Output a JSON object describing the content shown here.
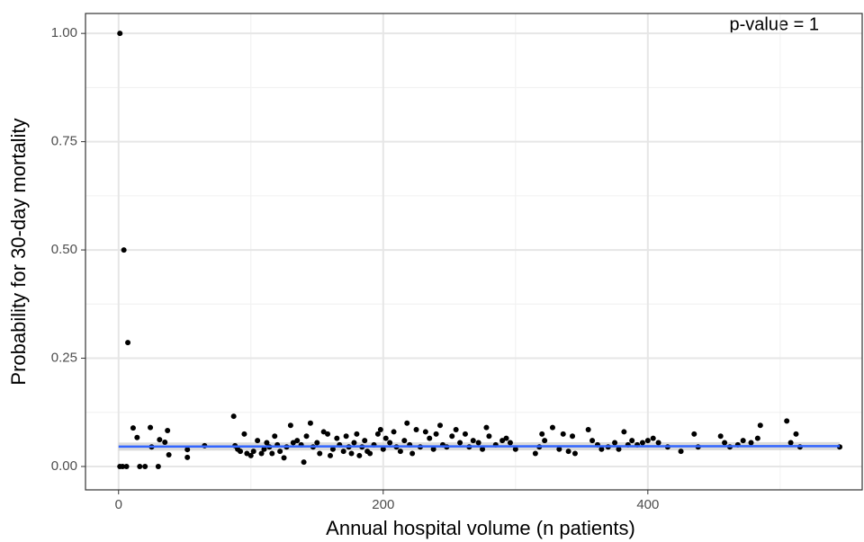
{
  "chart_data": {
    "type": "scatter",
    "annotation": "p-value = 1",
    "x_label": "Annual hospital volume (n patients)",
    "y_label": "Probability for 30-day mortality",
    "xlim": [
      -25,
      562
    ],
    "ylim": [
      -0.054,
      1.046
    ],
    "xticks": [
      0,
      200,
      400
    ],
    "yticks": [
      {
        "value": 0,
        "label": "0.00"
      },
      {
        "value": 0.25,
        "label": "0.25"
      },
      {
        "value": 0.5,
        "label": "0.50"
      },
      {
        "value": 0.75,
        "label": "0.75"
      },
      {
        "value": 1,
        "label": "1.00"
      }
    ],
    "x_minor_grid": [
      100,
      300,
      500
    ],
    "y_minor_grid": [
      0.125,
      0.375,
      0.625,
      0.875
    ],
    "grid": true,
    "color": "#000000",
    "trend": {
      "color": "#3366ff",
      "x": [
        0,
        545
      ],
      "values": [
        0.046,
        0.047
      ]
    },
    "x": [
      1,
      4,
      7,
      1,
      3,
      6,
      11,
      14,
      16,
      20,
      24,
      25,
      30,
      31,
      35,
      37,
      38,
      52,
      52,
      65,
      87,
      88,
      90,
      92,
      95,
      97,
      100,
      102,
      105,
      108,
      110,
      112,
      114,
      116,
      118,
      120,
      122,
      125,
      127,
      130,
      132,
      135,
      138,
      140,
      142,
      145,
      147,
      150,
      152,
      155,
      158,
      160,
      162,
      165,
      167,
      170,
      172,
      174,
      176,
      178,
      180,
      182,
      184,
      186,
      188,
      190,
      193,
      196,
      198,
      200,
      202,
      205,
      208,
      210,
      213,
      216,
      218,
      220,
      222,
      225,
      228,
      232,
      235,
      238,
      240,
      243,
      245,
      248,
      252,
      255,
      258,
      262,
      265,
      268,
      272,
      275,
      278,
      280,
      285,
      290,
      293,
      296,
      300,
      315,
      318,
      320,
      322,
      328,
      333,
      336,
      340,
      343,
      345,
      355,
      358,
      362,
      365,
      370,
      375,
      378,
      382,
      385,
      388,
      392,
      396,
      400,
      404,
      408,
      415,
      425,
      435,
      438,
      455,
      458,
      462,
      468,
      472,
      478,
      483,
      485,
      505,
      508,
      512,
      515,
      545
    ],
    "values": [
      1.0,
      0.5,
      0.286,
      0,
      0,
      0,
      0.089,
      0.067,
      0,
      0,
      0.09,
      0.045,
      0,
      0.062,
      0.056,
      0.083,
      0.027,
      0.039,
      0.021,
      0.048,
      0.116,
      0.048,
      0.04,
      0.035,
      0.075,
      0.03,
      0.025,
      0.035,
      0.06,
      0.03,
      0.04,
      0.055,
      0.045,
      0.03,
      0.07,
      0.05,
      0.035,
      0.02,
      0.045,
      0.095,
      0.055,
      0.06,
      0.05,
      0.01,
      0.07,
      0.1,
      0.045,
      0.055,
      0.03,
      0.08,
      0.075,
      0.025,
      0.04,
      0.065,
      0.05,
      0.035,
      0.07,
      0.045,
      0.03,
      0.055,
      0.075,
      0.025,
      0.045,
      0.06,
      0.035,
      0.03,
      0.05,
      0.075,
      0.085,
      0.04,
      0.065,
      0.055,
      0.08,
      0.045,
      0.035,
      0.06,
      0.1,
      0.05,
      0.03,
      0.085,
      0.045,
      0.08,
      0.065,
      0.04,
      0.075,
      0.095,
      0.05,
      0.045,
      0.07,
      0.085,
      0.055,
      0.075,
      0.045,
      0.06,
      0.055,
      0.04,
      0.09,
      0.07,
      0.05,
      0.06,
      0.065,
      0.055,
      0.04,
      0.03,
      0.045,
      0.075,
      0.06,
      0.09,
      0.04,
      0.075,
      0.035,
      0.07,
      0.03,
      0.085,
      0.06,
      0.05,
      0.04,
      0.045,
      0.055,
      0.04,
      0.08,
      0.05,
      0.06,
      0.05,
      0.055,
      0.06,
      0.065,
      0.055,
      0.045,
      0.035,
      0.075,
      0.045,
      0.07,
      0.055,
      0.045,
      0.05,
      0.06,
      0.055,
      0.065,
      0.095,
      0.105,
      0.055,
      0.075,
      0.045,
      0.045
    ]
  }
}
